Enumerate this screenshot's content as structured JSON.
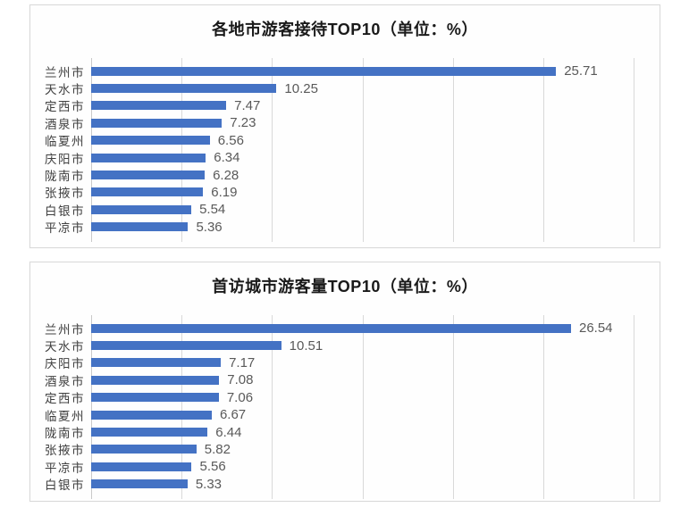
{
  "colors": {
    "bar": "#4472c4",
    "grid": "#d9d9d9",
    "axis": "#c9c9c9",
    "value_label": "#595959",
    "category_label": "#404040",
    "title": "#1a1a1a",
    "panel_border": "#d9d9d9"
  },
  "chart_data": [
    {
      "type": "bar",
      "orientation": "horizontal",
      "title": "各地市游客接待TOP10（单位：%）",
      "categories": [
        "兰州市",
        "天水市",
        "定西市",
        "酒泉市",
        "临夏州",
        "庆阳市",
        "陇南市",
        "张掖市",
        "白银市",
        "平凉市"
      ],
      "values": [
        25.71,
        10.25,
        7.47,
        7.23,
        6.56,
        6.34,
        6.28,
        6.19,
        5.54,
        5.36
      ],
      "value_labels": [
        "25.71",
        "10.25",
        "7.47",
        "7.23",
        "6.56",
        "6.34",
        "6.28",
        "6.19",
        "5.54",
        "5.36"
      ],
      "xlim": [
        0,
        30
      ],
      "gridline_step": 5,
      "grid": true,
      "legend": false,
      "xlabel": "",
      "ylabel": ""
    },
    {
      "type": "bar",
      "orientation": "horizontal",
      "title": "首访城市游客量TOP10（单位：%）",
      "categories": [
        "兰州市",
        "天水市",
        "庆阳市",
        "酒泉市",
        "定西市",
        "临夏州",
        "陇南市",
        "张掖市",
        "平凉市",
        "白银市"
      ],
      "values": [
        26.54,
        10.51,
        7.17,
        7.08,
        7.06,
        6.67,
        6.44,
        5.82,
        5.56,
        5.33
      ],
      "value_labels": [
        "26.54",
        "10.51",
        "7.17",
        "7.08",
        "7.06",
        "6.67",
        "6.44",
        "5.82",
        "5.56",
        "5.33"
      ],
      "xlim": [
        0,
        30
      ],
      "gridline_step": 5,
      "grid": true,
      "legend": false,
      "xlabel": "",
      "ylabel": ""
    }
  ]
}
